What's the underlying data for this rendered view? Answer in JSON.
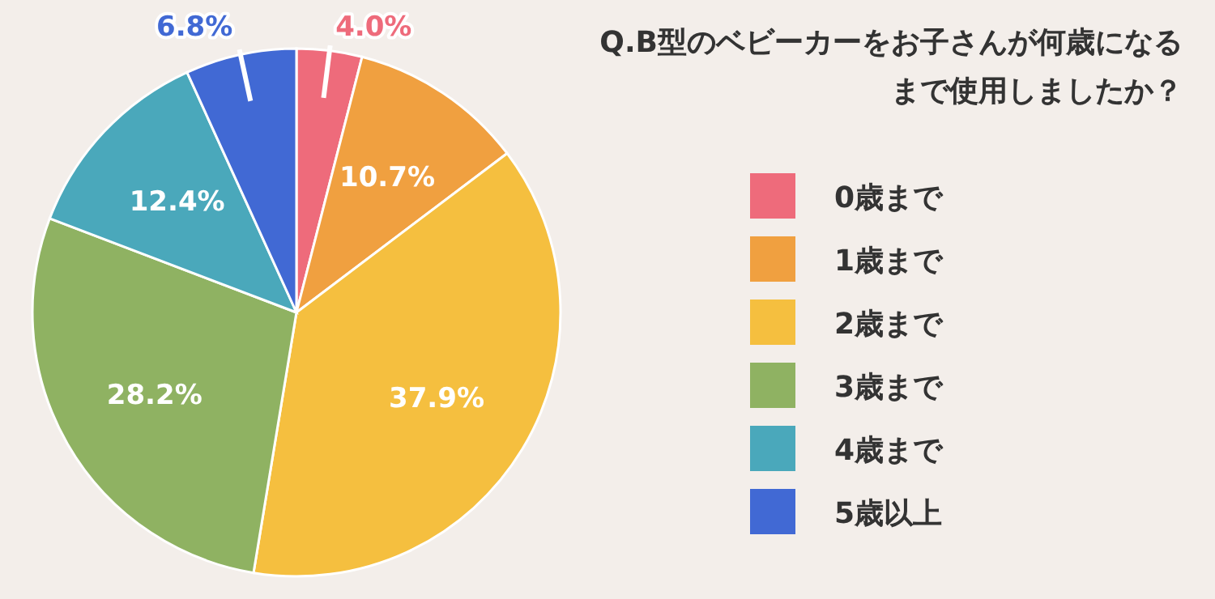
{
  "chart_data": {
    "type": "pie",
    "title": "Q.B型のベビーカーをお子さんが何歳になるまで使用しましたか？",
    "categories": [
      "0歳まで",
      "1歳まで",
      "2歳まで",
      "3歳まで",
      "4歳まで",
      "5歳以上"
    ],
    "values": [
      4.0,
      10.7,
      37.9,
      28.2,
      12.4,
      6.8
    ],
    "colors": [
      "#ee6b7b",
      "#f0a040",
      "#f5bf3f",
      "#8fb262",
      "#4aa8bb",
      "#4169d4"
    ],
    "value_labels": [
      "4.0%",
      "10.7%",
      "37.9%",
      "28.2%",
      "12.4%",
      "6.8%"
    ],
    "legend": "right"
  }
}
